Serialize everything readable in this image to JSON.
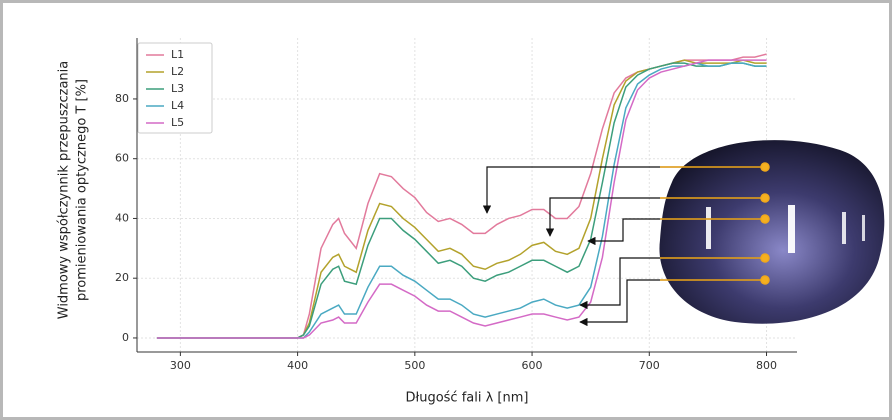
{
  "chart_data": {
    "type": "line",
    "xlabel": "Długość fali λ [nm]",
    "ylabel": [
      "Widmowy współczynnik przepuszczania",
      "promieniowania optycznego T [%]"
    ],
    "x": [
      280,
      300,
      320,
      340,
      360,
      380,
      400,
      405,
      410,
      420,
      430,
      435,
      440,
      450,
      460,
      470,
      480,
      490,
      500,
      510,
      520,
      530,
      540,
      550,
      560,
      570,
      580,
      590,
      600,
      610,
      620,
      630,
      640,
      650,
      660,
      670,
      680,
      690,
      700,
      710,
      720,
      730,
      740,
      750,
      760,
      770,
      780,
      790,
      800
    ],
    "series": [
      {
        "name": "L1",
        "color": "#e27a9c",
        "values": [
          0,
          0,
          0,
          0,
          0,
          0,
          0,
          1,
          8,
          30,
          38,
          40,
          35,
          30,
          45,
          55,
          54,
          50,
          47,
          42,
          39,
          40,
          38,
          35,
          35,
          38,
          40,
          41,
          43,
          43,
          40,
          40,
          44,
          55,
          70,
          82,
          87,
          89,
          90,
          91,
          92,
          93,
          93,
          93,
          93,
          93,
          94,
          94,
          95
        ]
      },
      {
        "name": "L2",
        "color": "#b3a22c",
        "values": [
          0,
          0,
          0,
          0,
          0,
          0,
          0,
          1,
          5,
          22,
          27,
          28,
          24,
          22,
          36,
          45,
          44,
          40,
          37,
          33,
          29,
          30,
          28,
          24,
          23,
          25,
          26,
          28,
          31,
          32,
          29,
          28,
          30,
          40,
          60,
          78,
          86,
          89,
          90,
          91,
          92,
          93,
          92,
          92,
          92,
          92,
          93,
          92,
          92
        ]
      },
      {
        "name": "L3",
        "color": "#3c9e7c",
        "values": [
          0,
          0,
          0,
          0,
          0,
          0,
          0,
          1,
          4,
          18,
          23,
          24,
          19,
          18,
          31,
          40,
          40,
          36,
          33,
          29,
          25,
          26,
          24,
          20,
          19,
          21,
          22,
          24,
          26,
          26,
          24,
          22,
          24,
          33,
          52,
          72,
          84,
          88,
          90,
          91,
          92,
          92,
          91,
          91,
          91,
          92,
          92,
          91,
          91
        ]
      },
      {
        "name": "L4",
        "color": "#4aa9c2",
        "values": [
          0,
          0,
          0,
          0,
          0,
          0,
          0,
          0,
          2,
          8,
          10,
          11,
          8,
          8,
          17,
          24,
          24,
          21,
          19,
          16,
          13,
          13,
          11,
          8,
          7,
          8,
          9,
          10,
          12,
          13,
          11,
          10,
          11,
          17,
          34,
          58,
          77,
          85,
          88,
          90,
          91,
          91,
          92,
          91,
          91,
          92,
          92,
          91,
          91
        ]
      },
      {
        "name": "L5",
        "color": "#d46ac6",
        "values": [
          0,
          0,
          0,
          0,
          0,
          0,
          0,
          0,
          1,
          5,
          6,
          7,
          5,
          5,
          12,
          18,
          18,
          16,
          14,
          11,
          9,
          9,
          7,
          5,
          4,
          5,
          6,
          7,
          8,
          8,
          7,
          6,
          7,
          12,
          27,
          52,
          73,
          83,
          87,
          89,
          90,
          91,
          92,
          93,
          93,
          93,
          93,
          93,
          93
        ]
      }
    ],
    "xlim": [
      263,
      826
    ],
    "ylim": [
      -4.7,
      100.4
    ],
    "xticks": [
      300,
      400,
      500,
      600,
      700,
      800
    ],
    "yticks": [
      0,
      20,
      40,
      60,
      80
    ],
    "grid": true,
    "legend": "upper left"
  }
}
